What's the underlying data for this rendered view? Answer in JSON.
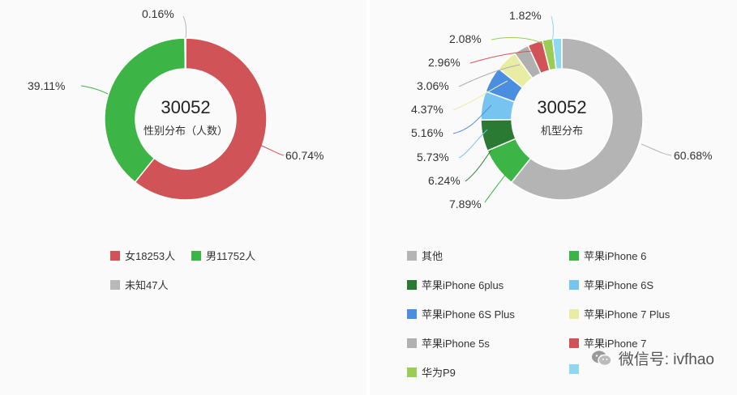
{
  "chart_data": [
    {
      "type": "pie",
      "variant": "donut",
      "center_total": "30052",
      "center_label": "性别分布（人数）",
      "slices": [
        {
          "name": "女18253人",
          "value": 18253,
          "percent_label": "60.74%",
          "color": "#d05457"
        },
        {
          "name": "男11752人",
          "value": 11752,
          "percent_label": "39.11%",
          "color": "#3db446"
        },
        {
          "name": "未知47人",
          "value": 47,
          "percent_label": "0.16%",
          "color": "#b8b8b8"
        }
      ],
      "legend_placement": "bottom"
    },
    {
      "type": "pie",
      "variant": "donut",
      "center_total": "30052",
      "center_label": "机型分布",
      "slices": [
        {
          "name": "其他",
          "value": 60.68,
          "percent_label": "60.68%",
          "color": "#b4b4b4"
        },
        {
          "name": "苹果iPhone 6",
          "value": 7.89,
          "percent_label": "7.89%",
          "color": "#3db446"
        },
        {
          "name": "苹果iPhone 6plus",
          "value": 6.24,
          "percent_label": "6.24%",
          "color": "#2a7a33"
        },
        {
          "name": "苹果iPhone 6S",
          "value": 5.73,
          "percent_label": "5.73%",
          "color": "#77c4f0"
        },
        {
          "name": "苹果iPhone 6S Plus",
          "value": 5.16,
          "percent_label": "5.16%",
          "color": "#4a8ee0"
        },
        {
          "name": "苹果iPhone 7 Plus",
          "value": 4.37,
          "percent_label": "4.37%",
          "color": "#e9eda3"
        },
        {
          "name": "苹果iPhone 5s",
          "value": 3.06,
          "percent_label": "3.06%",
          "color": "#b0b0b0"
        },
        {
          "name": "苹果iPhone 7",
          "value": 2.96,
          "percent_label": "2.96%",
          "color": "#d05457"
        },
        {
          "name": "华为P9",
          "value": 2.08,
          "percent_label": "2.08%",
          "color": "#9acd55"
        },
        {
          "name": "",
          "value": 1.82,
          "percent_label": "1.82%",
          "color": "#8fd8f0"
        }
      ],
      "legend_placement": "bottom"
    }
  ],
  "watermark": {
    "text": "微信号: ivfhao",
    "icon": "wechat-icon"
  }
}
